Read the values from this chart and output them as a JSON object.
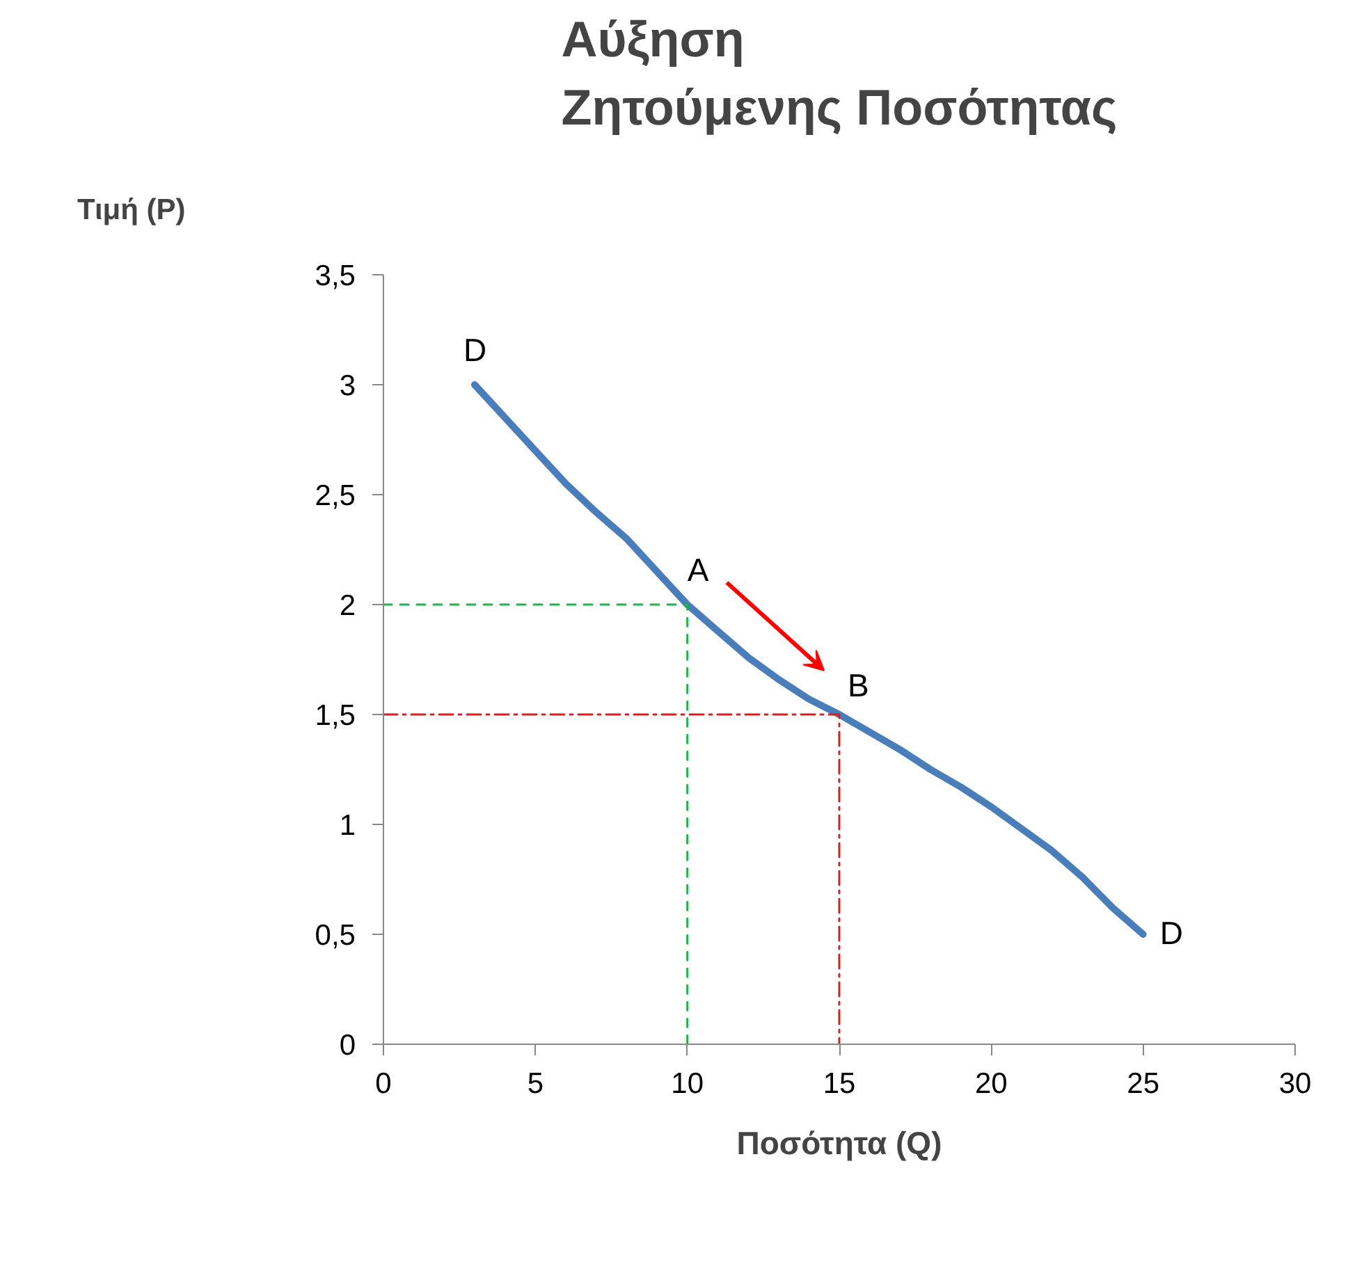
{
  "chart_data": {
    "type": "line",
    "title": "Αύξηση\nΖητούμενης Ποσότητας",
    "xlabel": "Ποσότητα (Q)",
    "ylabel": "Τιμή (P)",
    "xlim": [
      0,
      30
    ],
    "ylim": [
      0,
      3.5
    ],
    "xticks": [
      0,
      5,
      10,
      15,
      20,
      25,
      30
    ],
    "yticks": [
      0,
      {
        "value": 0.5,
        "label": "0,5"
      },
      1,
      {
        "value": 1.5,
        "label": "1,5"
      },
      2,
      {
        "value": 2.5,
        "label": "2,5"
      },
      3,
      {
        "value": 3.5,
        "label": "3,5"
      }
    ],
    "grid": false,
    "series": [
      {
        "color": "#4a7ebb",
        "x": [
          3,
          4,
          5,
          6,
          7,
          8,
          9,
          10,
          11,
          12,
          13,
          14,
          15,
          16,
          17,
          18,
          19,
          20,
          21,
          22,
          23,
          24,
          25
        ],
        "values": [
          3,
          2.85,
          2.7,
          2.55,
          2.42,
          2.3,
          2.15,
          2,
          1.88,
          1.76,
          1.66,
          1.57,
          1.5,
          1.42,
          1.34,
          1.25,
          1.17,
          1.08,
          0.98,
          0.88,
          0.76,
          0.62,
          0.5
        ],
        "line_style": "solid"
      },
      {
        "color": "#22b14c",
        "x": [
          0,
          10,
          10
        ],
        "values": [
          2,
          2,
          0
        ],
        "line_style": "dashed"
      },
      {
        "color": "#d62020",
        "x": [
          0,
          15,
          15
        ],
        "values": [
          1.5,
          1.5,
          0
        ],
        "line_style": "dashdot"
      }
    ],
    "annotations": [
      {
        "text": "D",
        "x": 3,
        "y": 3
      },
      {
        "text": "A",
        "x": 10,
        "y": 2
      },
      {
        "text": "B",
        "x": 15,
        "y": 1.5
      },
      {
        "text": "D",
        "x": 25,
        "y": 0.5
      }
    ]
  }
}
